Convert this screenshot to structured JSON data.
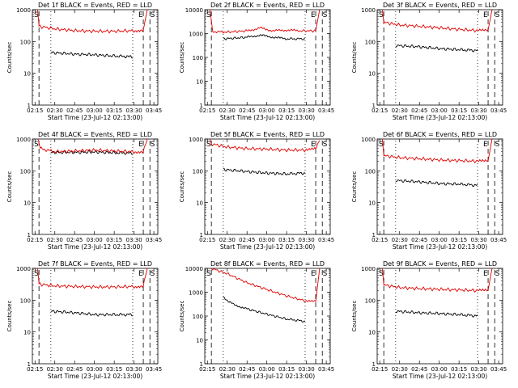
{
  "figure": {
    "ylabel": "Counts/sec",
    "xlabel": "Start Time (23-Jul-12 02:13:00)",
    "event_color": "#000000",
    "lld_color": "#e00000"
  },
  "chart_data": [
    {
      "type": "line",
      "title": "Det 1f BLACK = Events, RED = LLD",
      "xlabel": "Start Time (23-Jul-12 02:13:00)",
      "ylabel": "Counts/sec",
      "x_ticks": [
        "02:15",
        "02:30",
        "02:45",
        "03:00",
        "03:15",
        "03:30",
        "03:45"
      ],
      "y_ticks": [
        "1",
        "10",
        "100",
        "1000"
      ],
      "y_scale": "log",
      "ylim": [
        1,
        1000
      ],
      "markers": [
        "S",
        "E",
        "S"
      ],
      "series": [
        {
          "name": "BLACK = Events",
          "color": "#000000",
          "points": [
            [
              "02:27",
              45
            ],
            [
              "02:45",
              40
            ],
            [
              "03:00",
              38
            ],
            [
              "03:15",
              35
            ],
            [
              "03:29",
              33
            ]
          ]
        },
        {
          "name": "RED = LLD",
          "color": "#e00000",
          "points": [
            [
              "02:17",
              1000
            ],
            [
              "02:18",
              300
            ],
            [
              "02:30",
              250
            ],
            [
              "02:45",
              220
            ],
            [
              "03:00",
              210
            ],
            [
              "03:15",
              210
            ],
            [
              "03:30",
              220
            ],
            [
              "03:37",
              230
            ],
            [
              "03:40",
              1000
            ]
          ]
        }
      ]
    },
    {
      "type": "line",
      "title": "Det 2f BLACK = Events, RED = LLD",
      "xlabel": "Start Time (23-Jul-12 02:13:00)",
      "ylabel": "Counts/sec",
      "x_ticks": [
        "02:15",
        "02:30",
        "02:45",
        "03:00",
        "03:15",
        "03:30",
        "03:45"
      ],
      "y_ticks": [
        "1",
        "10",
        "100",
        "1000",
        "10000"
      ],
      "y_scale": "log",
      "ylim": [
        1,
        10000
      ],
      "markers": [
        "S",
        "E",
        "S"
      ],
      "series": [
        {
          "name": "BLACK = Events",
          "color": "#000000",
          "points": [
            [
              "02:27",
              600
            ],
            [
              "02:45",
              700
            ],
            [
              "02:55",
              850
            ],
            [
              "03:05",
              700
            ],
            [
              "03:15",
              600
            ],
            [
              "03:29",
              600
            ]
          ]
        },
        {
          "name": "RED = LLD",
          "color": "#e00000",
          "points": [
            [
              "02:17",
              10000
            ],
            [
              "02:19",
              1200
            ],
            [
              "02:30",
              1150
            ],
            [
              "02:45",
              1300
            ],
            [
              "02:55",
              1700
            ],
            [
              "03:05",
              1300
            ],
            [
              "03:15",
              1400
            ],
            [
              "03:25",
              1300
            ],
            [
              "03:37",
              1300
            ],
            [
              "03:40",
              10000
            ]
          ]
        }
      ]
    },
    {
      "type": "line",
      "title": "Det 3f BLACK = Events, RED = LLD",
      "xlabel": "Start Time (23-Jul-12 02:13:00)",
      "ylabel": "Counts/sec",
      "x_ticks": [
        "02:15",
        "02:30",
        "02:45",
        "03:00",
        "03:15",
        "03:30",
        "03:45"
      ],
      "y_ticks": [
        "1",
        "10",
        "100",
        "1000"
      ],
      "y_scale": "log",
      "ylim": [
        1,
        1000
      ],
      "markers": [
        "S",
        "E",
        "S"
      ],
      "series": [
        {
          "name": "BLACK = Events",
          "color": "#000000",
          "points": [
            [
              "02:27",
              75
            ],
            [
              "02:45",
              68
            ],
            [
              "03:00",
              60
            ],
            [
              "03:15",
              55
            ],
            [
              "03:29",
              52
            ]
          ]
        },
        {
          "name": "RED = LLD",
          "color": "#e00000",
          "points": [
            [
              "02:17",
              1000
            ],
            [
              "02:18",
              400
            ],
            [
              "02:30",
              330
            ],
            [
              "02:45",
              300
            ],
            [
              "03:00",
              270
            ],
            [
              "03:15",
              240
            ],
            [
              "03:30",
              220
            ],
            [
              "03:37",
              230
            ],
            [
              "03:40",
              1000
            ]
          ]
        }
      ]
    },
    {
      "type": "line",
      "title": "Det 4f BLACK = Events, RED = LLD",
      "xlabel": "Start Time (23-Jul-12 02:13:00)",
      "ylabel": "Counts/sec",
      "x_ticks": [
        "02:15",
        "02:30",
        "02:45",
        "03:00",
        "03:15",
        "03:30",
        "03:45"
      ],
      "y_ticks": [
        "1",
        "10",
        "100",
        "1000"
      ],
      "y_scale": "log",
      "ylim": [
        1,
        1000
      ],
      "markers": [
        "S",
        "E",
        "S"
      ],
      "series": [
        {
          "name": "BLACK = Events",
          "color": "#000000",
          "points": [
            [
              "02:27",
              380
            ],
            [
              "02:45",
              380
            ],
            [
              "03:00",
              390
            ],
            [
              "03:15",
              370
            ],
            [
              "03:29",
              360
            ]
          ]
        },
        {
          "name": "RED = LLD",
          "color": "#e00000",
          "points": [
            [
              "02:17",
              1000
            ],
            [
              "02:19",
              500
            ],
            [
              "02:30",
              400
            ],
            [
              "02:45",
              420
            ],
            [
              "03:00",
              450
            ],
            [
              "03:15",
              420
            ],
            [
              "03:30",
              400
            ],
            [
              "03:37",
              400
            ],
            [
              "03:40",
              1000
            ]
          ]
        }
      ]
    },
    {
      "type": "line",
      "title": "Det 5f BLACK = Events, RED = LLD",
      "xlabel": "Start Time (23-Jul-12 02:13:00)",
      "ylabel": "Counts/sec",
      "x_ticks": [
        "02:15",
        "02:30",
        "02:45",
        "03:00",
        "03:15",
        "03:30",
        "03:45"
      ],
      "y_ticks": [
        "1",
        "10",
        "100",
        "1000"
      ],
      "y_scale": "log",
      "ylim": [
        1,
        1000
      ],
      "markers": [
        "S",
        "E",
        "S"
      ],
      "series": [
        {
          "name": "BLACK = Events",
          "color": "#000000",
          "points": [
            [
              "02:27",
              110
            ],
            [
              "02:45",
              95
            ],
            [
              "03:00",
              85
            ],
            [
              "03:15",
              80
            ],
            [
              "03:29",
              85
            ]
          ]
        },
        {
          "name": "RED = LLD",
          "color": "#e00000",
          "points": [
            [
              "02:17",
              1000
            ],
            [
              "02:18",
              700
            ],
            [
              "02:30",
              560
            ],
            [
              "02:45",
              500
            ],
            [
              "03:00",
              480
            ],
            [
              "03:15",
              450
            ],
            [
              "03:30",
              450
            ],
            [
              "03:37",
              480
            ],
            [
              "03:40",
              1000
            ]
          ]
        }
      ]
    },
    {
      "type": "line",
      "title": "Det 6f BLACK = Events, RED = LLD",
      "xlabel": "Start Time (23-Jul-12 02:13:00)",
      "ylabel": "Counts/sec",
      "x_ticks": [
        "02:15",
        "02:30",
        "02:45",
        "03:00",
        "03:15",
        "03:30",
        "03:45"
      ],
      "y_ticks": [
        "1",
        "10",
        "100",
        "1000"
      ],
      "y_scale": "log",
      "ylim": [
        1,
        1000
      ],
      "markers": [
        "S",
        "E",
        "S"
      ],
      "series": [
        {
          "name": "BLACK = Events",
          "color": "#000000",
          "points": [
            [
              "02:27",
              50
            ],
            [
              "02:45",
              45
            ],
            [
              "03:00",
              40
            ],
            [
              "03:15",
              38
            ],
            [
              "03:29",
              35
            ]
          ]
        },
        {
          "name": "RED = LLD",
          "color": "#e00000",
          "points": [
            [
              "02:17",
              1000
            ],
            [
              "02:18",
              300
            ],
            [
              "02:30",
              260
            ],
            [
              "02:45",
              240
            ],
            [
              "03:00",
              220
            ],
            [
              "03:15",
              210
            ],
            [
              "03:30",
              200
            ],
            [
              "03:37",
              210
            ],
            [
              "03:40",
              1000
            ]
          ]
        }
      ]
    },
    {
      "type": "line",
      "title": "Det 7f BLACK = Events, RED = LLD",
      "xlabel": "Start Time (23-Jul-12 02:13:00)",
      "ylabel": "Counts/sec",
      "x_ticks": [
        "02:15",
        "02:30",
        "02:45",
        "03:00",
        "03:15",
        "03:30",
        "03:45"
      ],
      "y_ticks": [
        "1",
        "10",
        "100",
        "1000"
      ],
      "y_scale": "log",
      "ylim": [
        1,
        1000
      ],
      "markers": [
        "S",
        "E",
        "S"
      ],
      "series": [
        {
          "name": "BLACK = Events",
          "color": "#000000",
          "points": [
            [
              "02:27",
              45
            ],
            [
              "02:45",
              40
            ],
            [
              "03:00",
              35
            ],
            [
              "03:15",
              35
            ],
            [
              "03:29",
              35
            ]
          ]
        },
        {
          "name": "RED = LLD",
          "color": "#e00000",
          "points": [
            [
              "02:17",
              1000
            ],
            [
              "02:18",
              320
            ],
            [
              "02:30",
              280
            ],
            [
              "02:45",
              270
            ],
            [
              "03:00",
              260
            ],
            [
              "03:15",
              260
            ],
            [
              "03:30",
              270
            ],
            [
              "03:37",
              280
            ],
            [
              "03:40",
              1000
            ]
          ]
        }
      ]
    },
    {
      "type": "line",
      "title": "Det 8f BLACK = Events, RED = LLD",
      "xlabel": "Start Time (23-Jul-12 02:13:00)",
      "ylabel": "Counts/sec",
      "x_ticks": [
        "02:15",
        "02:30",
        "02:45",
        "03:00",
        "03:15",
        "03:30",
        "03:45"
      ],
      "y_ticks": [
        "1",
        "10",
        "100",
        "1000",
        "10000"
      ],
      "y_scale": "log",
      "ylim": [
        1,
        10000
      ],
      "markers": [
        "S",
        "E",
        "S"
      ],
      "series": [
        {
          "name": "BLACK = Events",
          "color": "#000000",
          "points": [
            [
              "02:27",
              600
            ],
            [
              "02:35",
              300
            ],
            [
              "02:45",
              200
            ],
            [
              "03:00",
              120
            ],
            [
              "03:15",
              75
            ],
            [
              "03:29",
              60
            ]
          ]
        },
        {
          "name": "RED = LLD",
          "color": "#e00000",
          "points": [
            [
              "02:18",
              10000
            ],
            [
              "02:30",
              6000
            ],
            [
              "02:45",
              2500
            ],
            [
              "03:00",
              1300
            ],
            [
              "03:15",
              700
            ],
            [
              "03:30",
              420
            ],
            [
              "03:37",
              400
            ],
            [
              "03:40",
              10000
            ]
          ]
        }
      ]
    },
    {
      "type": "line",
      "title": "Det 9f BLACK = Events, RED = LLD",
      "xlabel": "Start Time (23-Jul-12 02:13:00)",
      "ylabel": "Counts/sec",
      "x_ticks": [
        "02:15",
        "02:30",
        "02:45",
        "03:00",
        "03:15",
        "03:30",
        "03:45"
      ],
      "y_ticks": [
        "1",
        "10",
        "100",
        "1000"
      ],
      "y_scale": "log",
      "ylim": [
        1,
        1000
      ],
      "markers": [
        "S",
        "E",
        "S"
      ],
      "series": [
        {
          "name": "BLACK = Events",
          "color": "#000000",
          "points": [
            [
              "02:27",
              45
            ],
            [
              "02:45",
              40
            ],
            [
              "03:00",
              38
            ],
            [
              "03:15",
              35
            ],
            [
              "03:29",
              32
            ]
          ]
        },
        {
          "name": "RED = LLD",
          "color": "#e00000",
          "points": [
            [
              "02:17",
              1000
            ],
            [
              "02:18",
              300
            ],
            [
              "02:30",
              250
            ],
            [
              "02:45",
              230
            ],
            [
              "03:00",
              220
            ],
            [
              "03:15",
              210
            ],
            [
              "03:30",
              200
            ],
            [
              "03:37",
              210
            ],
            [
              "03:40",
              1000
            ]
          ]
        }
      ]
    }
  ]
}
